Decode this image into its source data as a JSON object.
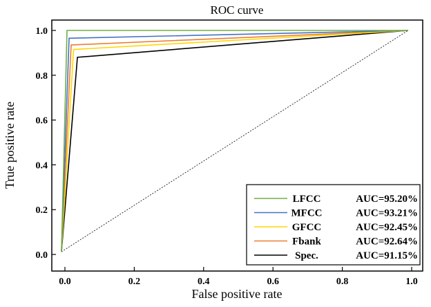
{
  "chart_data": {
    "type": "line",
    "title": "ROC curve",
    "xlabel": "False positive rate",
    "ylabel": "True positive rate",
    "xlim": [
      -0.04,
      1.03
    ],
    "ylim": [
      -0.04,
      1.08
    ],
    "xticks": [
      "0.0",
      "0.2",
      "0.4",
      "0.6",
      "0.8",
      "1.0"
    ],
    "yticks": [
      "0.0",
      "0.2",
      "0.4",
      "0.6",
      "0.8",
      "1.0"
    ],
    "xtick_values": [
      0,
      0.2,
      0.4,
      0.6,
      0.8,
      1.0
    ],
    "ytick_values": [
      0,
      0.2,
      0.4,
      0.6,
      0.8,
      1.0
    ],
    "grid": false,
    "legend_position": "bottom-right",
    "series": [
      {
        "name": "LFCC",
        "auc": "AUC=95.20%",
        "color": "#70ad47",
        "x": [
          -0.01,
          0.006,
          0.99
        ],
        "y": [
          0.012,
          1.0,
          1.0
        ]
      },
      {
        "name": "MFCC",
        "auc": "AUC=93.21%",
        "color": "#4472c4",
        "x": [
          -0.01,
          0.012,
          0.99
        ],
        "y": [
          0.012,
          0.965,
          1.0
        ]
      },
      {
        "name": "GFCC",
        "auc": "AUC=92.45%",
        "color": "#ffd700",
        "x": [
          -0.01,
          0.025,
          0.99
        ],
        "y": [
          0.012,
          0.915,
          1.0
        ]
      },
      {
        "name": "Fbank",
        "auc": "AUC=92.64%",
        "color": "#ed7d31",
        "x": [
          -0.01,
          0.018,
          0.99
        ],
        "y": [
          0.012,
          0.935,
          1.0
        ]
      },
      {
        "name": "Spec.",
        "auc": "AUC=91.15%",
        "color": "#000000",
        "x": [
          -0.01,
          0.036,
          0.99
        ],
        "y": [
          0.012,
          0.88,
          1.0
        ]
      }
    ],
    "reference_line": {
      "x": [
        -0.01,
        0.99
      ],
      "y": [
        0.012,
        1.0
      ]
    }
  }
}
